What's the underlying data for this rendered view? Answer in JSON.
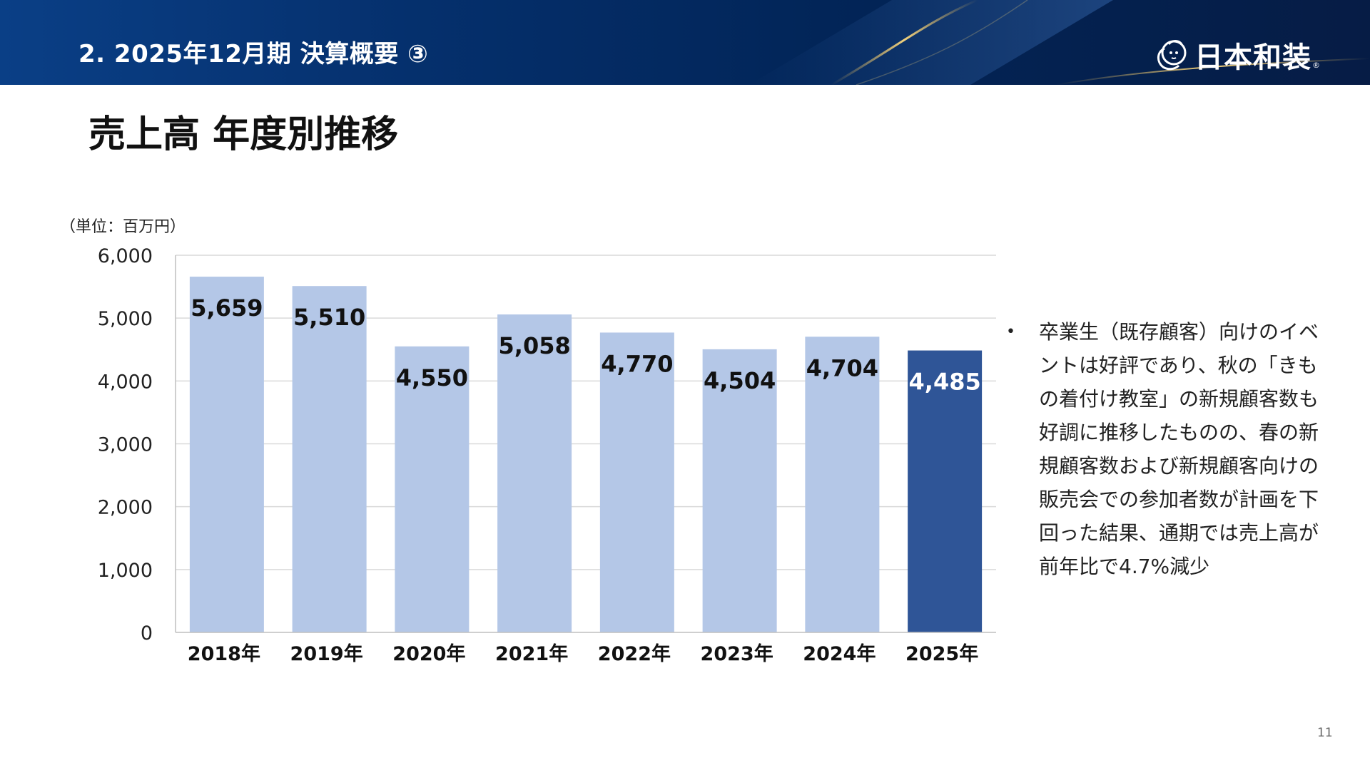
{
  "header": {
    "section_title": "2. 2025年12月期 決算概要 ③",
    "logo_text": "日本和装",
    "logo_reg": "®",
    "bg_color": "#05306d",
    "accent_color": "#d9b25a"
  },
  "page": {
    "title": "売上高 年度別推移",
    "unit_label": "（単位：百万円）",
    "page_number": "11"
  },
  "chart_data": {
    "type": "bar",
    "categories": [
      "2018年",
      "2019年",
      "2020年",
      "2021年",
      "2022年",
      "2023年",
      "2024年",
      "2025年"
    ],
    "values": [
      5659,
      5510,
      4550,
      5058,
      4770,
      4504,
      4704,
      4485
    ],
    "value_labels": [
      "5,659",
      "5,510",
      "4,550",
      "5,058",
      "4,770",
      "4,504",
      "4,704",
      "4,485"
    ],
    "ylim": [
      0,
      6000
    ],
    "yticks": [
      0,
      1000,
      2000,
      3000,
      4000,
      5000,
      6000
    ],
    "ytick_labels": [
      "0",
      "1,000",
      "2,000",
      "3,000",
      "4,000",
      "5,000",
      "6,000"
    ],
    "highlight_index": 7,
    "bar_color": "#b4c7e7",
    "highlight_color": "#2f5597",
    "grid": true,
    "legend": "none"
  },
  "commentary": {
    "bullet": "•",
    "text": "卒業生（既存顧客）向けのイベントは好評であり、秋の「きもの着付け教室」の新規顧客数も好調に推移したものの、春の新規顧客数および新規顧客向けの販売会での参加者数が計画を下回った結果、通期では売上高が前年比で4.7%減少"
  }
}
